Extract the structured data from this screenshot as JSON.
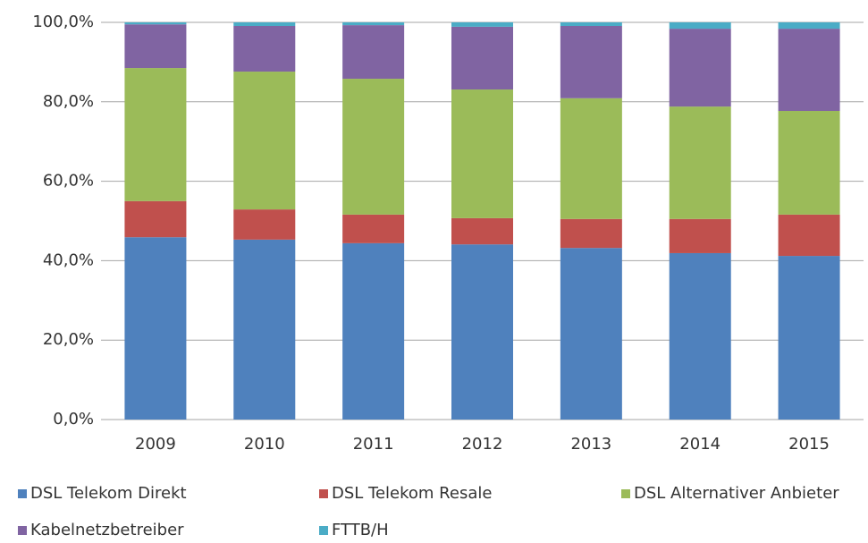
{
  "chart_data": {
    "type": "stacked_bar",
    "categories": [
      "2009",
      "2010",
      "2011",
      "2012",
      "2013",
      "2014",
      "2015"
    ],
    "series": [
      {
        "name": "DSL Telekom Direkt",
        "color": "#4f81bd",
        "values": [
          45.9,
          45.3,
          44.4,
          44.1,
          43.2,
          41.9,
          41.2
        ]
      },
      {
        "name": "DSL Telekom Resale",
        "color": "#c0504d",
        "values": [
          9.1,
          7.6,
          7.2,
          6.6,
          7.3,
          8.6,
          10.4
        ]
      },
      {
        "name": "DSL Alternativer Anbieter",
        "color": "#9bbb59",
        "values": [
          33.5,
          34.7,
          34.2,
          32.4,
          30.4,
          28.3,
          26.1
        ]
      },
      {
        "name": "Kabelnetzbetreiber",
        "color": "#8064a2",
        "values": [
          11.0,
          11.5,
          13.5,
          15.8,
          18.2,
          19.6,
          20.7
        ]
      },
      {
        "name": "FTTB/H",
        "color": "#4bacc6",
        "values": [
          0.5,
          0.9,
          0.7,
          1.1,
          0.9,
          1.6,
          1.6
        ]
      }
    ],
    "ylim": [
      0,
      100
    ],
    "yticks": [
      {
        "value": 0,
        "label": "0,0%"
      },
      {
        "value": 20,
        "label": "20,0%"
      },
      {
        "value": 40,
        "label": "40,0%"
      },
      {
        "value": 60,
        "label": "60,0%"
      },
      {
        "value": 80,
        "label": "80,0%"
      },
      {
        "value": 100,
        "label": "100,0%"
      }
    ],
    "grid": true
  }
}
